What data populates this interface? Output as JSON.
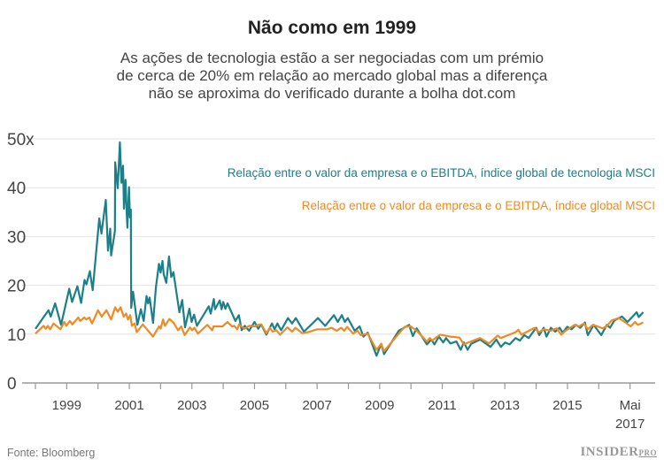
{
  "chart_data": {
    "type": "line",
    "title": "Não como em 1999",
    "subtitle": "As ações de tecnologia estão a ser negociadas com um prémio de cerca de 20% em relação ao mercado global mas a diferença não se aproxima do verificado durante a bolha dot.com",
    "subtitle_lines": [
      "As ações de tecnologia estão a ser negociadas com um prémio",
      "de cerca de 20% em relação ao mercado global mas a diferença",
      "não se aproxima do verificado durante a bolha dot.com"
    ],
    "xlabel": "",
    "ylabel": "",
    "xlim": [
      1998,
      2017.6
    ],
    "ylim": [
      0,
      50
    ],
    "y_ticks": [
      {
        "v": 0,
        "label": "0"
      },
      {
        "v": 10,
        "label": "10"
      },
      {
        "v": 20,
        "label": "20"
      },
      {
        "v": 30,
        "label": "30"
      },
      {
        "v": 40,
        "label": "40"
      },
      {
        "v": 50,
        "label": "50x"
      }
    ],
    "x_ticks": [
      1998,
      1999,
      2000,
      2001,
      2002,
      2003,
      2004,
      2005,
      2006,
      2007,
      2008,
      2009,
      2010,
      2011,
      2012,
      2013,
      2014,
      2015,
      2016,
      2017
    ],
    "x_tick_labels": [
      {
        "v": 1999,
        "label": "1999"
      },
      {
        "v": 2001,
        "label": "2001"
      },
      {
        "v": 2003,
        "label": "2003"
      },
      {
        "v": 2005,
        "label": "2005"
      },
      {
        "v": 2007,
        "label": "2007"
      },
      {
        "v": 2009,
        "label": "2009"
      },
      {
        "v": 2011,
        "label": "2011"
      },
      {
        "v": 2013,
        "label": "2013"
      },
      {
        "v": 2015,
        "label": "2015"
      },
      {
        "v": 2017,
        "label": "Mai",
        "label2": "2017"
      }
    ],
    "grid": true,
    "legend_placement": "top-right",
    "series": [
      {
        "name": "Relação entre o valor da empresa e o EBITDA, índice global de tecnologia MSCI",
        "color": "#1b8087",
        "x": [
          1998.0,
          1998.42,
          1998.49,
          1998.63,
          1998.82,
          1999.08,
          1999.17,
          1999.34,
          1999.46,
          1999.57,
          1999.63,
          1999.74,
          1999.83,
          2000.04,
          2000.11,
          2000.25,
          2000.32,
          2000.39,
          2000.42,
          2000.54,
          2000.55,
          2000.63,
          2000.7,
          2000.75,
          2000.8,
          2000.83,
          2000.88,
          2000.91,
          2000.94,
          2000.99,
          2001.02,
          2001.05,
          2001.06,
          2001.12,
          2001.26,
          2001.37,
          2001.46,
          2001.55,
          2001.6,
          2001.65,
          2001.76,
          2001.85,
          2001.95,
          2002.0,
          2002.06,
          2002.1,
          2002.18,
          2002.27,
          2002.34,
          2002.41,
          2002.6,
          2002.69,
          2002.78,
          2002.92,
          2002.99,
          2003.07,
          2003.16,
          2003.54,
          2003.6,
          2003.7,
          2003.74,
          2003.89,
          2003.95,
          2004.0,
          2004.07,
          2004.14,
          2004.39,
          2004.5,
          2004.59,
          2004.69,
          2004.83,
          2005.0,
          2005.12,
          2005.21,
          2005.38,
          2005.56,
          2005.64,
          2005.73,
          2005.85,
          2006.07,
          2006.2,
          2006.32,
          2006.58,
          2007.03,
          2007.26,
          2007.54,
          2007.66,
          2007.79,
          2007.89,
          2007.98,
          2008.2,
          2008.36,
          2008.48,
          2008.62,
          2008.9,
          2009.05,
          2009.14,
          2009.61,
          2009.94,
          2010.06,
          2010.18,
          2010.51,
          2010.65,
          2010.75,
          2010.89,
          2011.03,
          2011.12,
          2011.26,
          2011.45,
          2011.59,
          2011.69,
          2011.81,
          2011.92,
          2012.21,
          2012.54,
          2012.73,
          2012.87,
          2013.01,
          2013.15,
          2013.34,
          2013.48,
          2013.62,
          2013.76,
          2014.0,
          2014.1,
          2014.24,
          2014.33,
          2014.47,
          2014.61,
          2014.75,
          2014.85,
          2014.99,
          2015.13,
          2015.27,
          2015.41,
          2015.56,
          2015.65,
          2015.84,
          2016.08,
          2016.26,
          2016.36,
          2016.5,
          2016.74,
          2016.92,
          2017.21,
          2017.28,
          2017.42
        ],
        "values": [
          11.1,
          14.9,
          13.6,
          16.3,
          11.9,
          19.3,
          16.6,
          19.8,
          16.4,
          21.1,
          20.2,
          22.9,
          19.0,
          33.7,
          30.6,
          37.5,
          27.1,
          31.6,
          26.1,
          31.1,
          45.2,
          39.9,
          49.3,
          41.0,
          44.5,
          35.7,
          41.6,
          35.8,
          31.8,
          40.1,
          33.9,
          35.5,
          15.4,
          18.7,
          11.9,
          15.1,
          12.7,
          17.8,
          16.3,
          17.5,
          12.3,
          19.6,
          24.4,
          22.6,
          25.0,
          22.3,
          20.5,
          25.9,
          21.7,
          22.7,
          14.5,
          17.0,
          11.4,
          15.2,
          12.5,
          14.0,
          11.7,
          15.7,
          14.2,
          17.2,
          15.1,
          16.9,
          15.1,
          16.6,
          15.2,
          16.3,
          12.7,
          13.9,
          10.8,
          11.7,
          10.7,
          12.5,
          11.1,
          12.0,
          9.9,
          12.2,
          11.0,
          12.2,
          10.8,
          13.3,
          12.2,
          13.3,
          10.5,
          13.3,
          11.7,
          13.9,
          12.5,
          13.9,
          12.5,
          13.3,
          10.7,
          11.6,
          9.5,
          10.3,
          5.6,
          8.0,
          5.9,
          10.7,
          11.9,
          9.6,
          11.2,
          7.9,
          8.9,
          7.9,
          9.5,
          8.3,
          9.2,
          8.1,
          8.5,
          6.8,
          8.3,
          6.8,
          8.0,
          8.9,
          7.4,
          8.9,
          7.4,
          8.3,
          7.9,
          9.2,
          8.7,
          9.8,
          9.2,
          11.3,
          9.8,
          11.3,
          9.5,
          11.3,
          10.5,
          11.3,
          10.3,
          11.5,
          11.0,
          11.9,
          11.3,
          12.4,
          9.8,
          11.9,
          9.8,
          11.9,
          11.3,
          12.8,
          13.6,
          12.5,
          14.5,
          13.5,
          14.5
        ]
      },
      {
        "name": "Relação entre o valor da empresa e o EBITDA, índice global MSCI",
        "color": "#ef8a24",
        "x": [
          1998.0,
          1998.26,
          1998.33,
          1998.4,
          1998.47,
          1998.58,
          1998.8,
          1998.92,
          1998.99,
          1999.1,
          1999.18,
          1999.37,
          1999.43,
          1999.56,
          1999.63,
          1999.72,
          1999.81,
          2000.0,
          2000.12,
          2000.27,
          2000.42,
          2000.55,
          2000.63,
          2000.72,
          2000.82,
          2000.9,
          2000.96,
          2001.03,
          2001.08,
          2001.17,
          2001.24,
          2001.43,
          2001.76,
          2001.95,
          2002.0,
          2002.08,
          2002.14,
          2002.28,
          2002.42,
          2002.56,
          2002.66,
          2002.77,
          2002.94,
          2003.01,
          2003.08,
          2003.19,
          2003.49,
          2003.65,
          2003.69,
          2003.98,
          2004.14,
          2004.28,
          2004.35,
          2004.45,
          2004.51,
          2004.68,
          2004.83,
          2005.02,
          2005.11,
          2005.22,
          2005.38,
          2005.49,
          2005.58,
          2005.7,
          2005.82,
          2006.05,
          2006.2,
          2006.31,
          2006.52,
          2006.71,
          2007.0,
          2007.32,
          2007.46,
          2007.63,
          2007.77,
          2007.87,
          2007.96,
          2008.15,
          2008.29,
          2008.39,
          2008.62,
          2008.9,
          2009.05,
          2009.14,
          2009.57,
          2009.8,
          2009.99,
          2010.18,
          2010.51,
          2010.6,
          2010.68,
          2010.93,
          2011.26,
          2011.55,
          2011.69,
          2011.83,
          2012.21,
          2012.49,
          2012.77,
          2012.87,
          2013.34,
          2013.43,
          2013.53,
          2013.95,
          2014.09,
          2014.24,
          2014.47,
          2014.66,
          2014.8,
          2014.94,
          2015.23,
          2015.37,
          2015.53,
          2015.65,
          2015.81,
          2015.96,
          2016.12,
          2016.25,
          2016.41,
          2016.64,
          2016.83,
          2017.02,
          2017.16,
          2017.25,
          2017.42
        ],
        "values": [
          10.1,
          11.7,
          11.1,
          11.7,
          11.0,
          12.2,
          11.0,
          12.5,
          11.7,
          12.7,
          12.0,
          13.4,
          12.7,
          13.4,
          13.0,
          13.4,
          12.2,
          14.9,
          13.6,
          14.9,
          13.0,
          15.5,
          14.6,
          15.5,
          13.6,
          14.2,
          13.0,
          13.9,
          11.7,
          12.2,
          10.4,
          12.0,
          9.5,
          11.6,
          11.1,
          13.0,
          11.7,
          13.1,
          12.3,
          10.8,
          11.6,
          9.8,
          11.4,
          10.8,
          11.3,
          10.1,
          11.9,
          10.8,
          11.6,
          11.6,
          12.5,
          11.6,
          11.7,
          11.0,
          12.0,
          11.1,
          11.7,
          11.6,
          11.9,
          12.0,
          10.2,
          11.3,
          10.5,
          10.8,
          9.9,
          11.4,
          10.5,
          11.3,
          10.2,
          10.4,
          11.0,
          11.0,
          11.3,
          10.7,
          11.3,
          10.7,
          11.5,
          10.1,
          10.7,
          9.8,
          10.1,
          6.8,
          8.0,
          6.5,
          9.8,
          11.5,
          11.6,
          10.7,
          8.5,
          9.2,
          8.7,
          9.9,
          9.5,
          9.3,
          7.9,
          8.3,
          9.2,
          8.1,
          9.7,
          9.2,
          10.4,
          10.9,
          9.9,
          11.3,
          10.4,
          11.0,
          10.7,
          11.2,
          9.9,
          10.7,
          11.9,
          11.6,
          12.2,
          11.0,
          11.9,
          11.6,
          11.2,
          11.6,
          12.8,
          13.3,
          12.5,
          11.6,
          12.5,
          11.9,
          12.4
        ]
      }
    ]
  },
  "footer": {
    "source": "Fonte: Bloomberg",
    "logo": "INSIDER PRO",
    "logo_main": "INSIDER",
    "logo_sup": "PRO"
  }
}
